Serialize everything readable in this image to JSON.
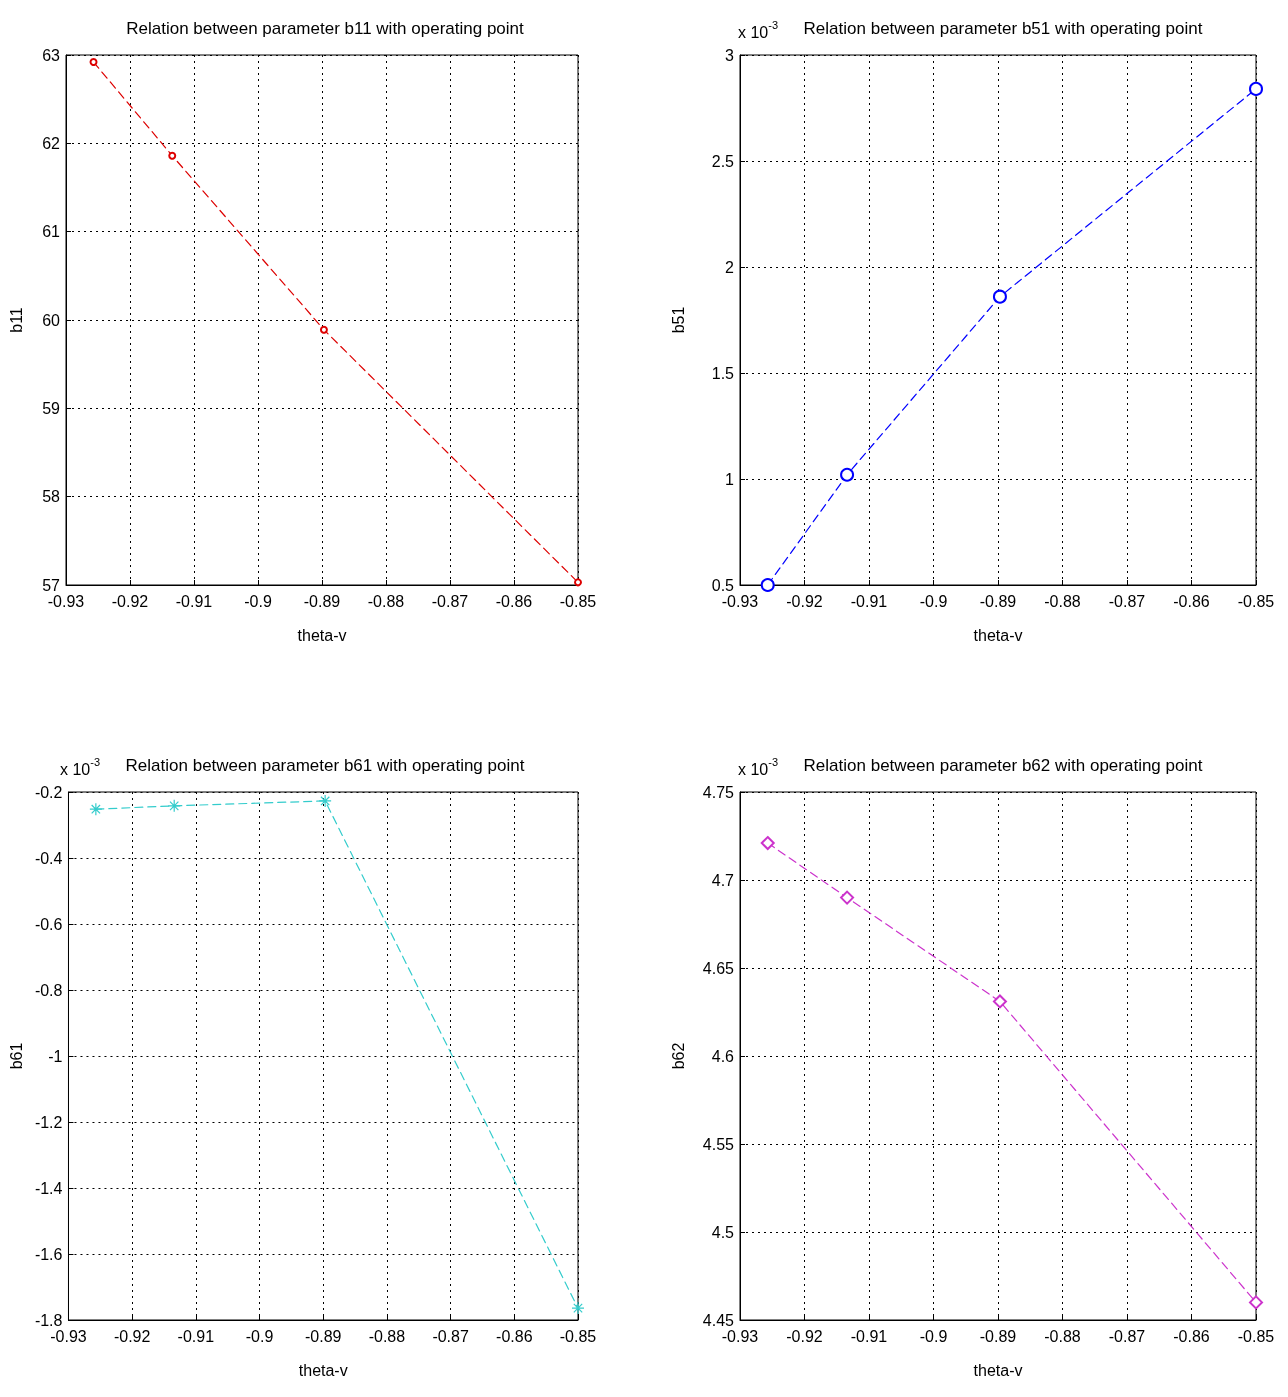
{
  "chart_data": [
    {
      "type": "line",
      "title": "Relation between parameter b11 with operating point",
      "xlabel": "theta-v",
      "ylabel": "b11",
      "x": [
        -0.9257,
        -0.9134,
        -0.8897,
        -0.85
      ],
      "series": [
        {
          "color": "#dd0000",
          "values": [
            62.92,
            61.86,
            59.89,
            57.03
          ]
        }
      ],
      "xlim": [
        -0.93,
        -0.85
      ],
      "xticks": [
        -0.93,
        -0.92,
        -0.91,
        -0.9,
        -0.89,
        -0.88,
        -0.87,
        -0.86,
        -0.85
      ],
      "ylim": [
        57,
        63
      ],
      "yticks": [
        57,
        58,
        59,
        60,
        61,
        62,
        63
      ],
      "grid": true,
      "marker": "circle",
      "line_style": "dashed"
    },
    {
      "type": "line",
      "title": "Relation between parameter b51 with operating point",
      "xlabel": "theta-v",
      "ylabel": "b51",
      "annotations": [
        "x 10$^{-3}$"
      ],
      "x": [
        -0.9257,
        -0.9134,
        -0.8897,
        -0.85
      ],
      "series": [
        {
          "color": "#0000ff",
          "values": [
            0.5,
            1.02,
            1.86,
            2.84
          ]
        }
      ],
      "xlim": [
        -0.93,
        -0.85
      ],
      "xticks": [
        -0.93,
        -0.92,
        -0.91,
        -0.9,
        -0.89,
        -0.88,
        -0.87,
        -0.86,
        -0.85
      ],
      "ylim": [
        0.5,
        3
      ],
      "yticks": [
        0.5,
        1,
        1.5,
        2,
        2.5,
        3
      ],
      "grid": true,
      "marker": "circle",
      "line_style": "dashed"
    },
    {
      "type": "line",
      "title": "Relation between parameter b61 with operating point",
      "xlabel": "theta-v",
      "ylabel": "b61",
      "annotations": [
        "x 10$^{-3}$"
      ],
      "x": [
        -0.9257,
        -0.9134,
        -0.8897,
        -0.85
      ],
      "series": [
        {
          "color": "#33cccc",
          "values": [
            -0.252,
            -0.242,
            -0.227,
            -1.764
          ]
        }
      ],
      "xlim": [
        -0.93,
        -0.85
      ],
      "xticks": [
        -0.93,
        -0.92,
        -0.91,
        -0.9,
        -0.89,
        -0.88,
        -0.87,
        -0.86,
        -0.85
      ],
      "ylim": [
        -1.8,
        -0.2
      ],
      "yticks": [
        -1.8,
        -1.6,
        -1.4,
        -1.2,
        -1,
        -0.8,
        -0.6,
        -0.4,
        -0.2
      ],
      "grid": true,
      "marker": "cross",
      "line_style": "dashed"
    },
    {
      "type": "line",
      "title": "Relation between parameter b62 with operating point",
      "xlabel": "theta-v",
      "ylabel": "b62",
      "annotations": [
        "x 10$^{-3}$"
      ],
      "x": [
        -0.9257,
        -0.9134,
        -0.8897,
        -0.85
      ],
      "series": [
        {
          "color": "#cc33cc",
          "values": [
            4.721,
            4.69,
            4.631,
            4.46
          ]
        }
      ],
      "xlim": [
        -0.93,
        -0.85
      ],
      "xticks": [
        -0.93,
        -0.92,
        -0.91,
        -0.9,
        -0.89,
        -0.88,
        -0.87,
        -0.86,
        -0.85
      ],
      "ylim": [
        4.45,
        4.75
      ],
      "yticks": [
        4.45,
        4.5,
        4.55,
        4.6,
        4.65,
        4.7,
        4.75
      ],
      "grid": true,
      "marker": "diamond",
      "line_style": "dashed"
    }
  ]
}
